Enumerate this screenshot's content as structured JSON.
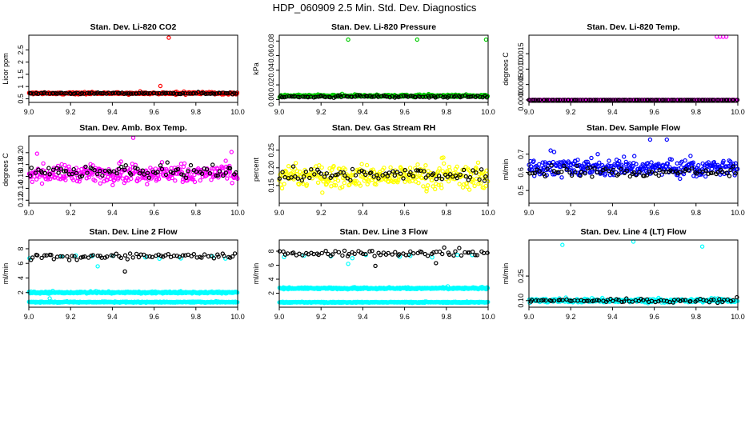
{
  "figure": {
    "title": "HDP_060909  2.5 Min. Std. Dev. Diagnostics"
  },
  "chart_data": [
    {
      "type": "scatter",
      "title": "Stan. Dev. Li-820 CO2",
      "xlabel": "",
      "ylabel": "Licor ppm",
      "xlim": [
        9.0,
        10.0
      ],
      "ylim": [
        0.35,
        3.1
      ],
      "xticks": [
        9.0,
        9.2,
        9.4,
        9.6,
        9.8,
        10.0
      ],
      "xtick_labels": [
        "9.0",
        "9.2",
        "9.4",
        "9.6",
        "9.8",
        "10.0"
      ],
      "yticks": [
        0.5,
        1.0,
        1.5,
        2.0,
        2.5
      ],
      "ytick_labels": [
        "0.5",
        "1",
        "1.5",
        "2",
        "2.5"
      ],
      "series": [
        {
          "name": "main",
          "color": "#ff0000",
          "base": 0.72,
          "spread": 0.12,
          "count": 320,
          "outliers": [
            [
              9.67,
              3.0
            ],
            [
              9.63,
              1.02
            ]
          ]
        },
        {
          "name": "overlay",
          "color": "#000000",
          "base": 0.72,
          "spread": 0.08,
          "count": 95
        }
      ]
    },
    {
      "type": "scatter",
      "title": "Stan. Dev. Li-820 Pressure",
      "xlabel": "",
      "ylabel": "kPa",
      "xlim": [
        9.0,
        10.0
      ],
      "ylim": [
        -0.004,
        0.088
      ],
      "xticks": [
        9.0,
        9.2,
        9.4,
        9.6,
        9.8,
        10.0
      ],
      "xtick_labels": [
        "9.0",
        "9.2",
        "9.4",
        "9.6",
        "9.8",
        "10.0"
      ],
      "yticks": [
        0.0,
        0.02,
        0.04,
        0.06,
        0.08
      ],
      "ytick_labels": [
        "0.00",
        "0.02",
        "0.04",
        "0.06",
        "0.08"
      ],
      "series": [
        {
          "name": "main",
          "color": "#00cc00",
          "base": 0.005,
          "spread": 0.005,
          "count": 320,
          "outliers": [
            [
              9.33,
              0.082
            ],
            [
              9.66,
              0.082
            ],
            [
              9.99,
              0.082
            ]
          ]
        },
        {
          "name": "overlay",
          "color": "#000000",
          "base": 0.004,
          "spread": 0.004,
          "count": 95
        }
      ]
    },
    {
      "type": "scatter",
      "title": "Stan. Dev. Li-820 Temp.",
      "xlabel": "",
      "ylabel": "degrees C",
      "xlim": [
        9.0,
        10.0
      ],
      "ylim": [
        -8e-05,
        0.0021
      ],
      "xticks": [
        9.0,
        9.2,
        9.4,
        9.6,
        9.8,
        10.0
      ],
      "xtick_labels": [
        "9.0",
        "9.2",
        "9.4",
        "9.6",
        "9.8",
        "10.0"
      ],
      "yticks": [
        0.0,
        0.0005,
        0.001,
        0.0015
      ],
      "ytick_labels": [
        "0.0000",
        "0.0005",
        "0.0010",
        "0.0015"
      ],
      "series": [
        {
          "name": "main",
          "color": "#ff00ff",
          "base": 0.0,
          "spread": 0.0,
          "count": 320,
          "outliers": [
            [
              9.9,
              0.00205
            ],
            [
              9.915,
              0.00205
            ],
            [
              9.93,
              0.00205
            ],
            [
              9.945,
              0.00205
            ]
          ]
        },
        {
          "name": "overlay",
          "color": "#000000",
          "base": 0.0,
          "spread": 0.0,
          "count": 95
        }
      ]
    },
    {
      "type": "scatter",
      "title": "Stan. Dev. Amb. Box Temp.",
      "xlabel": "",
      "ylabel": "degrees C",
      "xlim": [
        9.0,
        10.0
      ],
      "ylim": [
        0.115,
        0.228
      ],
      "xticks": [
        9.0,
        9.2,
        9.4,
        9.6,
        9.8,
        10.0
      ],
      "xtick_labels": [
        "9.0",
        "9.2",
        "9.4",
        "9.6",
        "9.8",
        "10.0"
      ],
      "yticks": [
        0.12,
        0.14,
        0.16,
        0.18,
        0.2
      ],
      "ytick_labels": [
        "0.12",
        "0.14",
        "0.16",
        "0.18",
        "0.20"
      ],
      "series": [
        {
          "name": "main",
          "color": "#ff00ff",
          "base": 0.165,
          "spread": 0.045,
          "count": 320,
          "outliers": [
            [
              9.5,
              0.225
            ]
          ]
        },
        {
          "name": "overlay",
          "color": "#000000",
          "base": 0.168,
          "spread": 0.028,
          "count": 80
        }
      ]
    },
    {
      "type": "scatter",
      "title": "Stan. Dev. Gas Stream RH",
      "xlabel": "",
      "ylabel": "percent",
      "xlim": [
        9.0,
        10.0
      ],
      "ylim": [
        0.1,
        0.29
      ],
      "xticks": [
        9.0,
        9.2,
        9.4,
        9.6,
        9.8,
        10.0
      ],
      "xtick_labels": [
        "9.0",
        "9.2",
        "9.4",
        "9.6",
        "9.8",
        "10.0"
      ],
      "yticks": [
        0.15,
        0.2,
        0.25
      ],
      "ytick_labels": [
        "0.15",
        "0.20",
        "0.25"
      ],
      "series": [
        {
          "name": "main",
          "color": "#ffff00",
          "base": 0.175,
          "spread": 0.1,
          "count": 320,
          "outliers": []
        },
        {
          "name": "overlay",
          "color": "#000000",
          "base": 0.18,
          "spread": 0.05,
          "count": 80
        }
      ]
    },
    {
      "type": "scatter",
      "title": "Stan. Dev. Sample Flow",
      "xlabel": "",
      "ylabel": "ml/min",
      "xlim": [
        9.0,
        10.0
      ],
      "ylim": [
        0.43,
        0.8
      ],
      "xticks": [
        9.0,
        9.2,
        9.4,
        9.6,
        9.8,
        10.0
      ],
      "xtick_labels": [
        "9.0",
        "9.2",
        "9.4",
        "9.6",
        "9.8",
        "10.0"
      ],
      "yticks": [
        0.5,
        0.6,
        0.7
      ],
      "ytick_labels": [
        "0.5",
        "0.6",
        "0.7"
      ],
      "series": [
        {
          "name": "main",
          "color": "#0000ff",
          "base": 0.625,
          "spread": 0.14,
          "count": 320,
          "outliers": [
            [
              9.58,
              0.78
            ],
            [
              9.66,
              0.78
            ]
          ]
        },
        {
          "name": "overlay",
          "color": "#000000",
          "base": 0.6,
          "spread": 0.09,
          "count": 80
        }
      ]
    },
    {
      "type": "scatter",
      "title": "Stan. Dev. Line 2 Flow",
      "xlabel": "",
      "ylabel": "ml/min",
      "xlim": [
        9.0,
        10.0
      ],
      "ylim": [
        0.0,
        9.2
      ],
      "xticks": [
        9.0,
        9.2,
        9.4,
        9.6,
        9.8,
        10.0
      ],
      "xtick_labels": [
        "9.0",
        "9.2",
        "9.4",
        "9.6",
        "9.8",
        "10.0"
      ],
      "yticks": [
        2,
        4,
        6,
        8
      ],
      "ytick_labels": [
        "2",
        "4",
        "6",
        "8"
      ],
      "series": [
        {
          "name": "band-high",
          "color": "#00ffff",
          "base": 2.0,
          "spread": 0.35,
          "count": 380,
          "outliers": [
            [
              9.1,
              1.2
            ]
          ]
        },
        {
          "name": "band-low",
          "color": "#00ffff",
          "base": 0.7,
          "spread": 0.2,
          "count": 380,
          "outliers": []
        },
        {
          "name": "cyan-upper",
          "color": "#00ffff",
          "base": 6.8,
          "spread": 1.0,
          "count": 10,
          "outliers": [
            [
              9.33,
              5.6
            ]
          ]
        },
        {
          "name": "overlay",
          "color": "#000000",
          "base": 7.0,
          "spread": 1.4,
          "count": 75,
          "outliers": [
            [
              9.46,
              4.9
            ]
          ]
        }
      ]
    },
    {
      "type": "scatter",
      "title": "Stan. Dev. Line 3 Flow",
      "xlabel": "",
      "ylabel": "ml/min",
      "xlim": [
        9.0,
        10.0
      ],
      "ylim": [
        0.0,
        9.6
      ],
      "xticks": [
        9.0,
        9.2,
        9.4,
        9.6,
        9.8,
        10.0
      ],
      "xtick_labels": [
        "9.0",
        "9.2",
        "9.4",
        "9.6",
        "9.8",
        "10.0"
      ],
      "yticks": [
        2,
        4,
        6,
        8
      ],
      "ytick_labels": [
        "2",
        "4",
        "6",
        "8"
      ],
      "series": [
        {
          "name": "band-high",
          "color": "#00ffff",
          "base": 2.7,
          "spread": 0.35,
          "count": 380,
          "outliers": []
        },
        {
          "name": "band-low",
          "color": "#00ffff",
          "base": 0.7,
          "spread": 0.2,
          "count": 380,
          "outliers": []
        },
        {
          "name": "cyan-upper",
          "color": "#00ffff",
          "base": 7.2,
          "spread": 1.0,
          "count": 10,
          "outliers": [
            [
              9.33,
              6.2
            ]
          ]
        },
        {
          "name": "overlay",
          "color": "#000000",
          "base": 7.7,
          "spread": 1.2,
          "count": 75,
          "outliers": [
            [
              9.46,
              5.9
            ],
            [
              9.75,
              6.3
            ]
          ]
        }
      ]
    },
    {
      "type": "scatter",
      "title": "Stan. Dev. Line 4 (LT) Flow",
      "xlabel": "",
      "ylabel": "ml/min",
      "xlim": [
        9.0,
        10.0
      ],
      "ylim": [
        0.06,
        0.47
      ],
      "xticks": [
        9.0,
        9.2,
        9.4,
        9.6,
        9.8,
        10.0
      ],
      "xtick_labels": [
        "9.0",
        "9.2",
        "9.4",
        "9.6",
        "9.8",
        "10.0"
      ],
      "yticks": [
        0.1,
        0.25
      ],
      "ytick_labels": [
        "0.10",
        "0.25"
      ],
      "series": [
        {
          "name": "main",
          "color": "#00ffff",
          "base": 0.1,
          "spread": 0.035,
          "count": 320,
          "outliers": [
            [
              9.16,
              0.44
            ],
            [
              9.5,
              0.46
            ],
            [
              9.83,
              0.43
            ]
          ]
        },
        {
          "name": "overlay",
          "color": "#000000",
          "base": 0.1,
          "spread": 0.03,
          "count": 75
        }
      ]
    }
  ]
}
